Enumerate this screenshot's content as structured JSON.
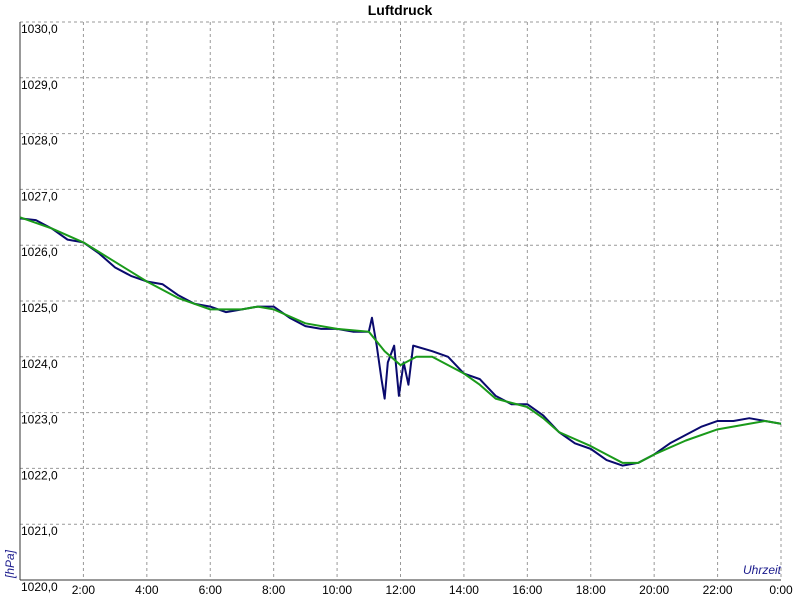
{
  "chart_data": {
    "type": "line",
    "title": "Luftdruck",
    "y_label": "[hPa]",
    "x_label": "Uhrzeit",
    "grid": true,
    "xlim": [
      0,
      24
    ],
    "ylim": [
      1020,
      1030
    ],
    "xticks": [
      {
        "value": 2,
        "label": "2:00"
      },
      {
        "value": 4,
        "label": "4:00"
      },
      {
        "value": 6,
        "label": "6:00"
      },
      {
        "value": 8,
        "label": "8:00"
      },
      {
        "value": 10,
        "label": "10:00"
      },
      {
        "value": 12,
        "label": "12:00"
      },
      {
        "value": 14,
        "label": "14:00"
      },
      {
        "value": 16,
        "label": "16:00"
      },
      {
        "value": 18,
        "label": "18:00"
      },
      {
        "value": 20,
        "label": "20:00"
      },
      {
        "value": 22,
        "label": "22:00"
      },
      {
        "value": 24,
        "label": "0:00"
      }
    ],
    "yticks": [
      {
        "value": 1020,
        "label": "1020,0"
      },
      {
        "value": 1021,
        "label": "1021,0"
      },
      {
        "value": 1022,
        "label": "1022,0"
      },
      {
        "value": 1023,
        "label": "1023,0"
      },
      {
        "value": 1024,
        "label": "1024,0"
      },
      {
        "value": 1025,
        "label": "1025,0"
      },
      {
        "value": 1026,
        "label": "1026,0"
      },
      {
        "value": 1027,
        "label": "1027,0"
      },
      {
        "value": 1028,
        "label": "1028,0"
      },
      {
        "value": 1029,
        "label": "1029,0"
      },
      {
        "value": 1030,
        "label": "1030,0"
      }
    ],
    "series": [
      {
        "color": "#0a0a6e",
        "x": [
          0,
          0.5,
          1,
          1.5,
          2,
          2.5,
          3,
          3.5,
          4,
          4.5,
          5,
          5.5,
          6,
          6.5,
          7,
          7.5,
          8,
          8.5,
          9,
          9.5,
          10,
          10.5,
          11,
          11.1,
          11.25,
          11.4,
          11.5,
          11.6,
          11.8,
          11.95,
          12.1,
          12.25,
          12.4,
          13,
          13.5,
          14,
          14.5,
          15,
          15.5,
          16,
          16.5,
          17,
          17.5,
          18,
          18.5,
          19,
          19.5,
          20,
          20.5,
          21,
          21.5,
          22,
          22.5,
          23,
          23.5,
          24
        ],
        "values": [
          1026.48,
          1026.45,
          1026.3,
          1026.1,
          1026.05,
          1025.85,
          1025.6,
          1025.45,
          1025.35,
          1025.3,
          1025.1,
          1024.95,
          1024.9,
          1024.8,
          1024.85,
          1024.9,
          1024.9,
          1024.7,
          1024.55,
          1024.5,
          1024.5,
          1024.45,
          1024.45,
          1024.7,
          1024.2,
          1023.6,
          1023.25,
          1023.9,
          1024.2,
          1023.3,
          1023.9,
          1023.5,
          1024.2,
          1024.1,
          1024.0,
          1023.7,
          1023.6,
          1023.3,
          1023.15,
          1023.15,
          1022.95,
          1022.65,
          1022.45,
          1022.35,
          1022.15,
          1022.05,
          1022.1,
          1022.25,
          1022.45,
          1022.6,
          1022.75,
          1022.85,
          1022.85,
          1022.9,
          1022.85,
          1022.8
        ]
      },
      {
        "color": "#1a9a1a",
        "x": [
          0,
          1,
          2,
          3,
          4,
          5,
          6,
          7,
          7.5,
          8,
          9,
          10,
          11,
          11.5,
          12,
          12.5,
          13,
          13.5,
          14,
          14.5,
          15,
          16,
          16.5,
          17,
          18,
          18.5,
          19,
          19.5,
          20,
          21,
          22,
          23,
          23.5,
          24
        ],
        "values": [
          1026.5,
          1026.3,
          1026.05,
          1025.7,
          1025.35,
          1025.05,
          1024.85,
          1024.85,
          1024.9,
          1024.85,
          1024.6,
          1024.5,
          1024.45,
          1024.1,
          1023.85,
          1024.0,
          1024.0,
          1023.85,
          1023.7,
          1023.5,
          1023.25,
          1023.1,
          1022.9,
          1022.65,
          1022.4,
          1022.25,
          1022.1,
          1022.1,
          1022.25,
          1022.5,
          1022.7,
          1022.8,
          1022.85,
          1022.8
        ]
      }
    ]
  }
}
